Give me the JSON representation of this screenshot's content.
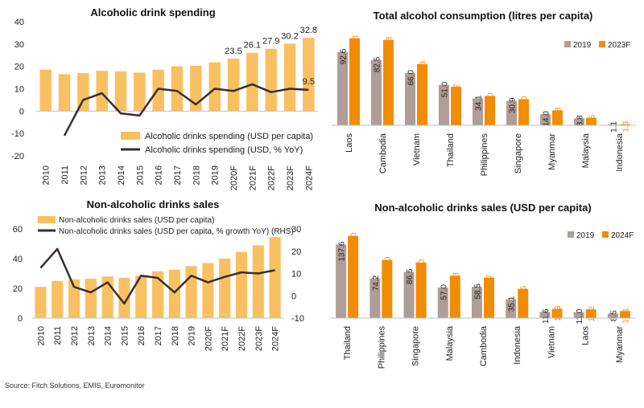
{
  "colors": {
    "bar_orange": "#f9c062",
    "line_dark": "#3a2e2c",
    "bar_taupe": "#b09d97",
    "bar_bright": "#f28c05",
    "label_orange": "#f28c05",
    "axis": "#bfbfbf"
  },
  "source": "Source: Fitch Solutions, EMIS, Euromonitor",
  "chart_data": [
    {
      "type": "bar",
      "title": "Alcoholic drink spending",
      "categories": [
        "2010",
        "2011",
        "2012",
        "2013",
        "2014",
        "2015",
        "2016",
        "2017",
        "2018",
        "2019",
        "2020F",
        "2021F",
        "2022F",
        "2023F",
        "2024F"
      ],
      "series": [
        {
          "name": "Alcoholic drinks spending (USD per capita)",
          "kind": "bar",
          "values": [
            18.5,
            16.5,
            17,
            18,
            17.8,
            17.2,
            18.5,
            20,
            20.3,
            21.8,
            23.5,
            26.1,
            27.9,
            30.2,
            32.8
          ]
        },
        {
          "name": "Alcoholic drinks spending (USD, % YoY)",
          "kind": "line",
          "values": [
            null,
            -11,
            5,
            8,
            -1,
            -2,
            10,
            9,
            3,
            10,
            9,
            12,
            8.5,
            10,
            9.5
          ]
        }
      ],
      "data_labels": {
        "10": "23.5",
        "11": "26.1",
        "12": "27.9",
        "13": "30.2",
        "14": "32.8"
      },
      "line_label": {
        "index": 14,
        "text": "9.5"
      },
      "yticks": [
        "40",
        "30",
        "20",
        "10",
        "0",
        "-10",
        "-20"
      ],
      "ylim": [
        -20,
        40
      ]
    },
    {
      "type": "bar",
      "title": "Total alcohol consumption (litres per capita)",
      "categories": [
        "Laos",
        "Cambodia",
        "Vietnam",
        "Thailand",
        "Philippines",
        "Singapore",
        "Myanmar",
        "Malaysia",
        "Indonesia"
      ],
      "series": [
        {
          "name": "2019",
          "values": [
            92.6,
            82.5,
            66.0,
            51.0,
            34.1,
            30.9,
            14.0,
            8.8,
            1.1
          ],
          "labels": [
            "92.6",
            "82.5",
            "66.0",
            "51.0",
            "34.1",
            "30.9",
            "14.0",
            "8.8",
            "1.1"
          ]
        },
        {
          "name": "2023F",
          "values": [
            109.8,
            107.8,
            77.3,
            48.7,
            37.0,
            33.0,
            18.8,
            9.5,
            1.3
          ],
          "labels": [
            "109.8",
            "107.8",
            "77.3",
            "48.7",
            "37.0",
            "33.0",
            "18.8",
            "9.5",
            "1.3"
          ]
        }
      ],
      "ylim": [
        0,
        140
      ]
    },
    {
      "type": "bar",
      "title": "Non-alcoholic drinks sales",
      "categories": [
        "2010",
        "2011",
        "2012",
        "2013",
        "2014",
        "2015",
        "2016",
        "2017",
        "2018",
        "2019",
        "2020F",
        "2021F",
        "2022F",
        "2023F",
        "2024F"
      ],
      "series": [
        {
          "name": "Non-alcoholic drinks sales (USD per capita)",
          "kind": "bar",
          "values": [
            21,
            25,
            26,
            26.5,
            28,
            27,
            28.5,
            31.5,
            32.5,
            35,
            37,
            40,
            44.5,
            49,
            54.5
          ]
        },
        {
          "name": "Non-alcoholic drinks sales (USD per capita, % growth YoY) (RHS)",
          "kind": "line",
          "axis": "right",
          "values": [
            12.5,
            21,
            4,
            1.5,
            6,
            -3.5,
            9,
            8,
            1.5,
            9,
            6,
            8.5,
            10.5,
            10,
            11.5
          ]
        }
      ],
      "yticks_left": [
        "60",
        "40",
        "20",
        "0"
      ],
      "yticks_right": [
        "30",
        "20",
        "10",
        "0",
        "-10"
      ],
      "ylim_left": [
        0,
        60
      ],
      "ylim_right": [
        -10,
        30
      ]
    },
    {
      "type": "bar",
      "title": "Non-alcoholic drinks sales (USD per capita)",
      "categories": [
        "Thailand",
        "Philippines",
        "Singapore",
        "Malaysia",
        "Cambodia",
        "Indonesia",
        "Vietnam",
        "Laos",
        "Myanmar"
      ],
      "series": [
        {
          "name": "2019",
          "values": [
            137.6,
            74.2,
            86.5,
            57.0,
            58.5,
            35.1,
            11.6,
            11.0,
            8.5
          ],
          "labels": [
            "137.6",
            "74.2",
            "86.5",
            "57.0",
            "58.5",
            "35.1",
            "11.6",
            "11.0",
            "8.5"
          ]
        },
        {
          "name": "2024F",
          "values": [
            154.0,
            109.0,
            104.0,
            79.3,
            75.7,
            54.5,
            17.3,
            16.2,
            13.1
          ],
          "labels": [
            "154.0",
            "109.0",
            "104.0",
            "79.3",
            "75.7",
            "54.5",
            "17.3",
            "16.2",
            "13.1"
          ]
        }
      ],
      "ylim": [
        0,
        200
      ]
    }
  ]
}
